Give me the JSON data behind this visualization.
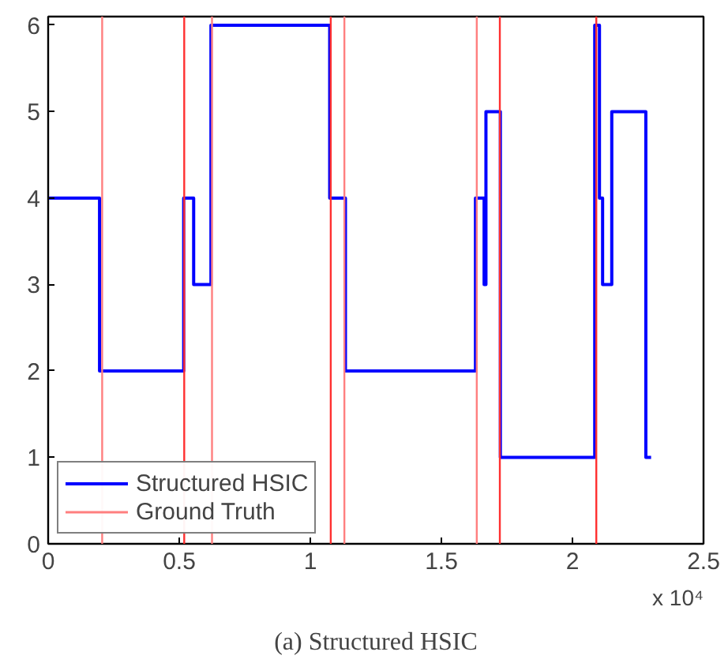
{
  "chart_data": {
    "type": "step",
    "title": "(a) Structured HSIC",
    "annotations": [
      "x 10⁴"
    ],
    "x": [
      0,
      0.196,
      0.517,
      0.555,
      0.621,
      1.074,
      1.134,
      1.63,
      1.663,
      1.67,
      1.725,
      2.085,
      2.103,
      2.115,
      2.15,
      2.28,
      2.3
    ],
    "series": [
      {
        "name": "Structured HSIC",
        "color": "#0000ff",
        "values": [
          4,
          2,
          4,
          3,
          6,
          4,
          2,
          4,
          3,
          5,
          1,
          6,
          4,
          3,
          5,
          1,
          1
        ]
      }
    ],
    "ref_lines": [
      {
        "axis": "x",
        "value": 0.206,
        "label": "Ground Truth",
        "color": "#ff7f7f"
      },
      {
        "axis": "x",
        "value": 0.519,
        "color": "#ff3030"
      },
      {
        "axis": "x",
        "value": 0.625,
        "color": "#ff7f7f"
      },
      {
        "axis": "x",
        "value": 1.078,
        "color": "#ff3030"
      },
      {
        "axis": "x",
        "value": 1.13,
        "color": "#ff7f7f"
      },
      {
        "axis": "x",
        "value": 1.635,
        "color": "#ff7f7f"
      },
      {
        "axis": "x",
        "value": 1.723,
        "color": "#ff3030"
      },
      {
        "axis": "x",
        "value": 2.091,
        "color": "#ff3030"
      }
    ],
    "xlim": [
      0,
      2.5
    ],
    "xticks": [
      0,
      0.5,
      1,
      1.5,
      2,
      2.5
    ],
    "ylim": [
      0,
      6.1
    ],
    "yticks": [
      0,
      1,
      2,
      3,
      4,
      5,
      6
    ],
    "grid": false,
    "legend": "bottom left",
    "marker": "none",
    "line_style": "solid"
  }
}
